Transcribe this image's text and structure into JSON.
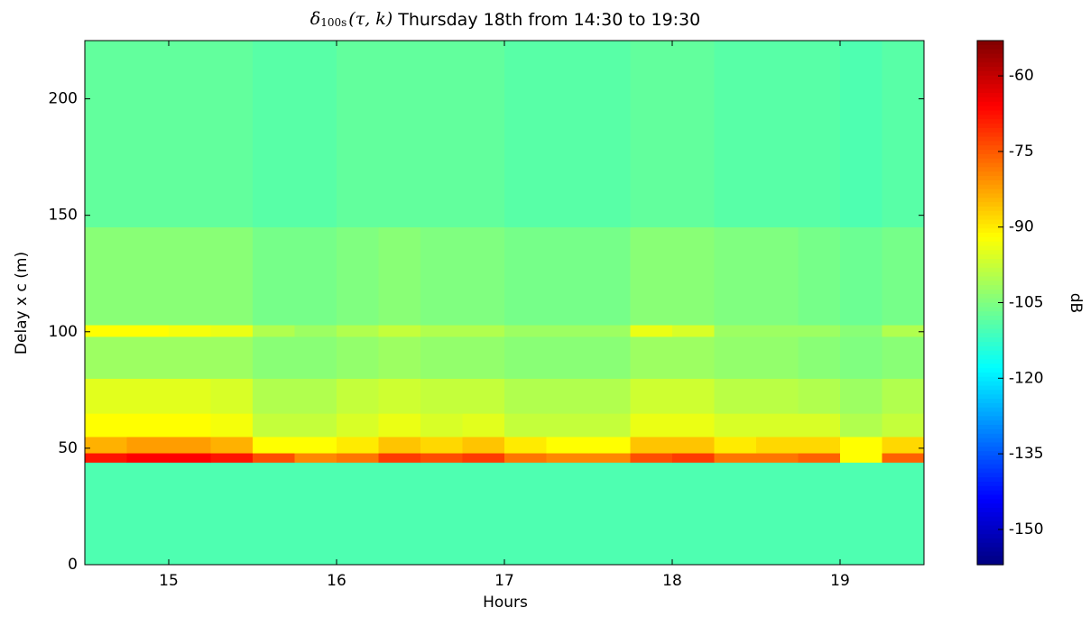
{
  "chart_data": {
    "type": "heatmap",
    "title": {
      "symbol": "δ",
      "subscript": "100s",
      "args": "(τ, k)",
      "text": "Thursday 18th from 14:30 to 19:30"
    },
    "xlabel": "Hours",
    "ylabel": "Delay x c (m)",
    "clabel": "dB",
    "colormap": "jet",
    "xlim": [
      14.5,
      19.5
    ],
    "xticks": [
      15,
      16,
      17,
      18,
      19
    ],
    "ylim": [
      0,
      225
    ],
    "yticks": [
      0,
      50,
      100,
      150,
      200
    ],
    "clim": [
      -157,
      -53
    ],
    "cticks": [
      -60,
      -75,
      -90,
      -105,
      -120,
      -135,
      -150
    ],
    "xbins": [
      14.5,
      14.75,
      15,
      15.25,
      15.5,
      15.75,
      16,
      16.25,
      16.5,
      16.75,
      17,
      17.25,
      17.5,
      17.75,
      18,
      18.25,
      18.5,
      18.75,
      19,
      19.25,
      19.5
    ],
    "ybins": [
      0,
      44,
      48,
      55,
      65,
      80,
      98,
      103,
      145,
      225
    ],
    "z": [
      [
        -110,
        -110,
        -110,
        -110,
        -110,
        -110,
        -110,
        -110,
        -110,
        -110,
        -110,
        -110,
        -110,
        -110,
        -110,
        -110,
        -110,
        -110,
        -110,
        -110
      ],
      [
        -68,
        -66,
        -66,
        -68,
        -74,
        -80,
        -78,
        -72,
        -74,
        -72,
        -78,
        -80,
        -80,
        -74,
        -72,
        -78,
        -78,
        -76,
        -92,
        -76
      ],
      [
        -84,
        -82,
        -82,
        -84,
        -92,
        -92,
        -90,
        -86,
        -88,
        -86,
        -90,
        -92,
        -92,
        -86,
        -86,
        -90,
        -88,
        -88,
        -92,
        -88
      ],
      [
        -92,
        -92,
        -92,
        -93,
        -98,
        -98,
        -96,
        -94,
        -96,
        -95,
        -98,
        -98,
        -98,
        -94,
        -94,
        -96,
        -96,
        -96,
        -100,
        -98
      ],
      [
        -95,
        -95,
        -95,
        -96,
        -100,
        -100,
        -98,
        -97,
        -98,
        -98,
        -100,
        -100,
        -100,
        -97,
        -97,
        -99,
        -99,
        -100,
        -102,
        -100
      ],
      [
        -102,
        -102,
        -102,
        -102,
        -104,
        -104,
        -103,
        -102,
        -103,
        -103,
        -104,
        -104,
        -104,
        -102,
        -102,
        -103,
        -103,
        -104,
        -105,
        -104
      ],
      [
        -92,
        -92,
        -93,
        -94,
        -100,
        -102,
        -100,
        -98,
        -100,
        -100,
        -102,
        -102,
        -102,
        -94,
        -96,
        -102,
        -102,
        -102,
        -104,
        -100
      ],
      [
        -104,
        -104,
        -104,
        -104,
        -106,
        -106,
        -105,
        -104,
        -105,
        -105,
        -106,
        -106,
        -106,
        -104,
        -104,
        -105,
        -105,
        -106,
        -107,
        -106
      ],
      [
        -108,
        -108,
        -108,
        -108,
        -109,
        -109,
        -108,
        -108,
        -108,
        -108,
        -109,
        -109,
        -109,
        -108,
        -108,
        -109,
        -109,
        -109,
        -110,
        -109
      ]
    ]
  }
}
